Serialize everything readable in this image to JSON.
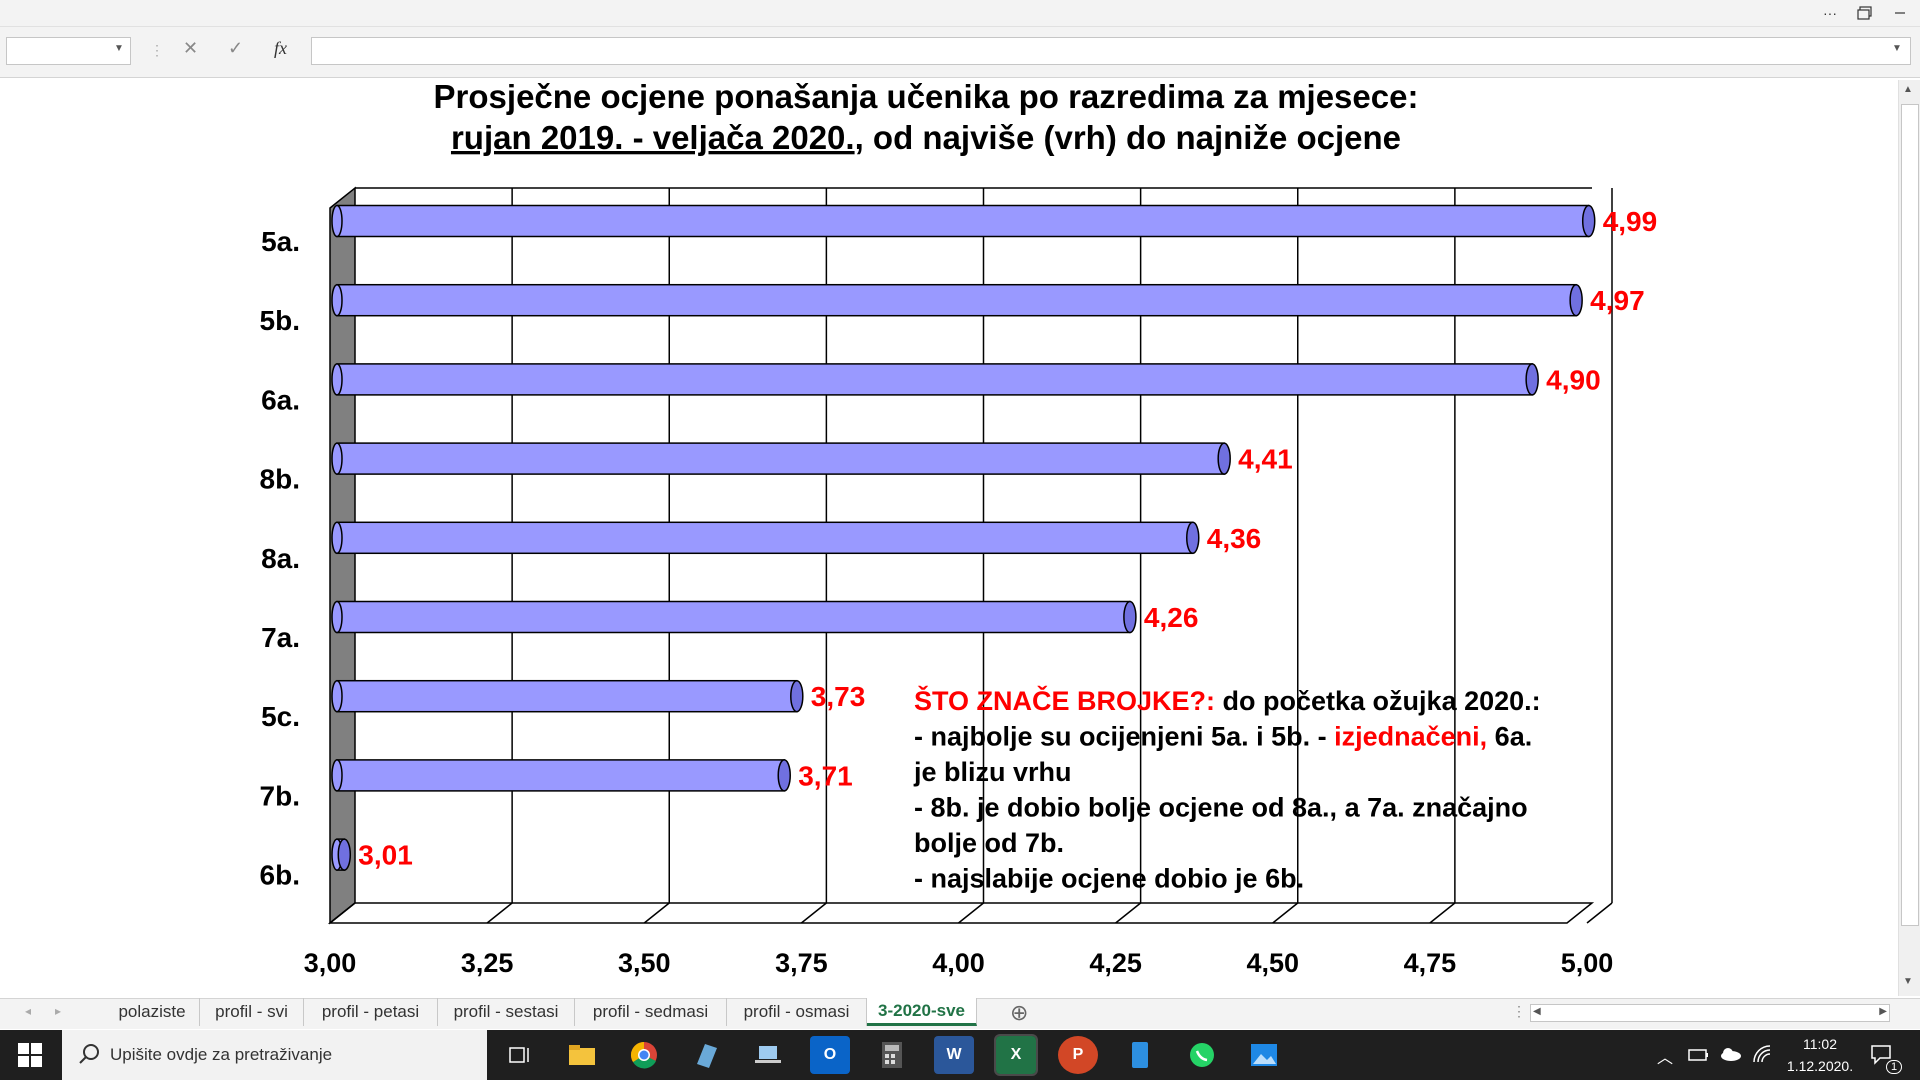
{
  "window": {
    "title_buttons": [
      "···",
      "restore-icon",
      "minimize-icon"
    ]
  },
  "formula_bar": {
    "name_box": "",
    "cancel_icon": "✕",
    "enter_icon": "✓",
    "fx": "fx",
    "formula": ""
  },
  "chart_data": {
    "type": "bar",
    "orientation": "horizontal",
    "title_line1": "Prosječne ocjene ponašanja učenika po razredima za mjesece:",
    "title_line2_underlined": "rujan 2019. - veljača 2020.",
    "title_line2_rest": ", od najviše (vrh) do najniže ocjene",
    "categories": [
      "5a.",
      "5b.",
      "6a.",
      "8b.",
      "8a.",
      "7a.",
      "5c.",
      "7b.",
      "6b."
    ],
    "values": [
      4.99,
      4.97,
      4.9,
      4.41,
      4.36,
      4.26,
      3.73,
      3.71,
      3.01
    ],
    "value_labels": [
      "4,99",
      "4,97",
      "4,90",
      "4,41",
      "4,36",
      "4,26",
      "3,73",
      "3,71",
      "3,01"
    ],
    "xlim": [
      3.0,
      5.0
    ],
    "x_ticks": [
      "3,00",
      "3,25",
      "3,50",
      "3,75",
      "4,00",
      "4,25",
      "4,50",
      "4,75",
      "5,00"
    ],
    "grid": true,
    "bar_color": "#9999ff",
    "label_color": "#ff0000",
    "annotation": {
      "heading": "ŠTO ZNAČE BROJKE?:",
      "heading_rest": " do početka ožujka 2020.:",
      "line1_a": "- najbolje su ocijenjeni 5a. i 5b. - ",
      "line1_red": "izjednačeni,",
      "line1_b": " 6a.",
      "line2": "je blizu vrhu",
      "line3": "- 8b. je dobio bolje ocjene od 8a., a 7a. značajno",
      "line4": "bolje od 7b.",
      "line5": "- najslabije ocjene dobio je 6b."
    }
  },
  "sheet_tabs": {
    "tabs": [
      "polaziste",
      "profil - svi",
      "profil - petasi",
      "profil - sestasi",
      "profil - sedmasi",
      "profil - osmasi",
      "3-2020-sve"
    ],
    "active": "3-2020-sve",
    "add_icon": "⊕",
    "more_icon": "⋮"
  },
  "taskbar": {
    "search_placeholder": "Upišite ovdje za pretraživanje",
    "time": "11:02",
    "date": "1.12.2020.",
    "notification_count": "1",
    "apps": [
      "task-view-icon",
      "file-explorer-icon",
      "chrome-icon",
      "app-icon",
      "laptop-icon",
      "outlook-icon",
      "calculator-icon",
      "word-icon",
      "excel-icon",
      "powerpoint-icon",
      "phone-icon",
      "whatsapp-icon",
      "photos-icon"
    ]
  }
}
